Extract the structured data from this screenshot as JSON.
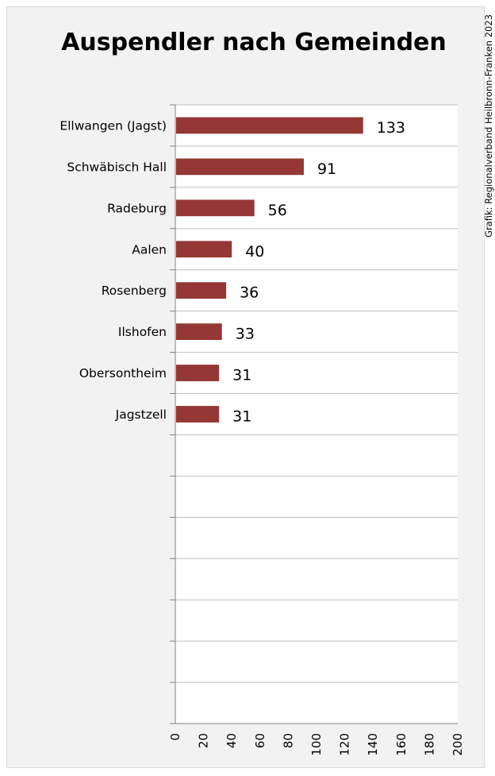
{
  "chart_data": {
    "type": "bar",
    "orientation": "horizontal",
    "title": "Auspendler nach Gemeinden",
    "categories": [
      "Ellwangen (Jagst)",
      "Schwäbisch Hall",
      "Radeburg",
      "Aalen",
      "Rosenberg",
      "Ilshofen",
      "Obersontheim",
      "Jagstzell"
    ],
    "values": [
      133,
      91,
      56,
      40,
      36,
      33,
      31,
      31
    ],
    "bar_color": "#953735",
    "xlim": [
      0,
      200
    ],
    "x_ticks": [
      0,
      20,
      40,
      60,
      80,
      100,
      120,
      140,
      160,
      180,
      200
    ],
    "category_slots": 15,
    "grid": true,
    "credit": "Grafik: Regionalverband Heilbronn-Franken 2023"
  }
}
